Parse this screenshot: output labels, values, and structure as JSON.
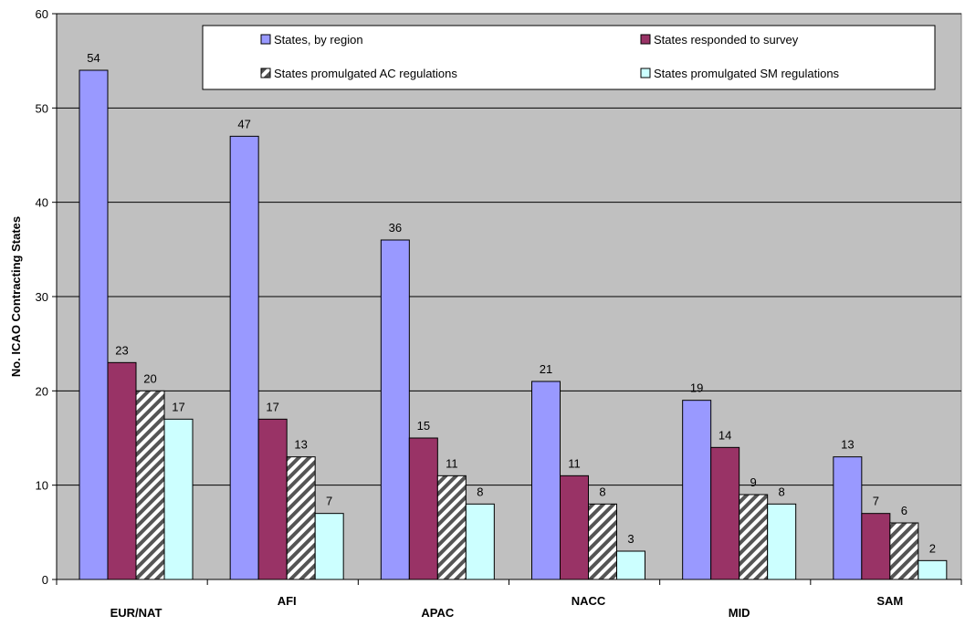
{
  "chart_data": {
    "type": "bar",
    "title": "",
    "xlabel": "",
    "ylabel": "No. ICAO Contracting States",
    "ylim": [
      0,
      60
    ],
    "yticks": [
      0,
      10,
      20,
      30,
      40,
      50,
      60
    ],
    "grid": true,
    "legend_position": "top-right",
    "categories": [
      "EUR/NAT",
      "AFI",
      "APAC",
      "NACC",
      "MID",
      "SAM"
    ],
    "series": [
      {
        "name": "States, by region",
        "color": "#9999ff",
        "pattern": "solid",
        "values": [
          54,
          47,
          36,
          21,
          19,
          13
        ]
      },
      {
        "name": "States responded to survey",
        "color": "#993366",
        "pattern": "solid",
        "values": [
          23,
          17,
          15,
          11,
          14,
          7
        ]
      },
      {
        "name": "States promulgated AC regulations",
        "color": "#ffffff",
        "pattern": "diagonal-stripes",
        "values": [
          20,
          13,
          11,
          8,
          9,
          6
        ]
      },
      {
        "name": "States promulgated SM regulations",
        "color": "#ccffff",
        "pattern": "solid",
        "values": [
          17,
          7,
          8,
          3,
          8,
          2
        ]
      }
    ],
    "plot_background": "#c0c0c0"
  }
}
